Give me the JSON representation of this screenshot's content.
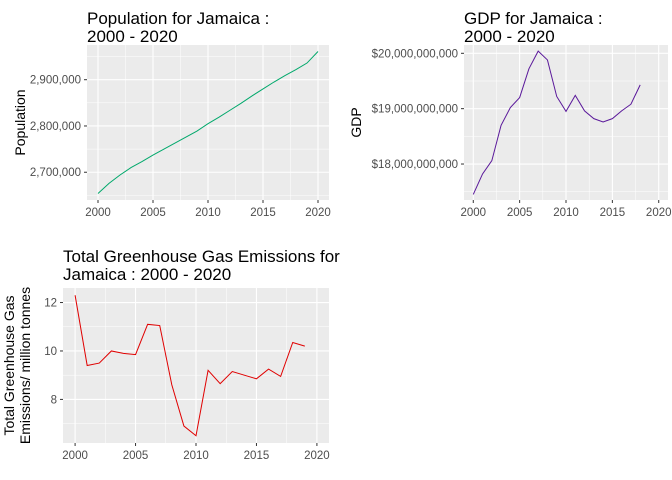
{
  "chart_data": [
    {
      "type": "line",
      "title_lines": [
        "Population for  Jamaica :",
        " 2000 - 2020"
      ],
      "xlabel": "",
      "ylabel_lines": [
        "Population"
      ],
      "color": "#00a86b",
      "xlim": [
        1999,
        2021
      ],
      "ylim": [
        2640000,
        2975000
      ],
      "x_ticks": [
        2000,
        2005,
        2010,
        2015,
        2020
      ],
      "x_tick_labels": [
        "2000",
        "2005",
        "2010",
        "2015",
        "2020"
      ],
      "y_ticks": [
        2700000,
        2800000,
        2900000
      ],
      "y_tick_labels": [
        "2,700,000",
        "2,800,000",
        "2,900,000"
      ],
      "x": [
        2000,
        2001,
        2002,
        2003,
        2004,
        2005,
        2006,
        2007,
        2008,
        2009,
        2010,
        2011,
        2012,
        2013,
        2014,
        2015,
        2016,
        2017,
        2018,
        2019,
        2020
      ],
      "values": [
        2654000,
        2676000,
        2694000,
        2710000,
        2723000,
        2737000,
        2750000,
        2763000,
        2776000,
        2789000,
        2805000,
        2819000,
        2834000,
        2849000,
        2865000,
        2880000,
        2895000,
        2909000,
        2922000,
        2936000,
        2961000
      ]
    },
    {
      "type": "line",
      "title_lines": [
        "GDP for  Jamaica :",
        " 2000 - 2020"
      ],
      "xlabel": "",
      "ylabel_lines": [
        "GDP"
      ],
      "color": "#5a189a",
      "xlim": [
        1999,
        2021
      ],
      "ylim": [
        17350000000,
        20150000000
      ],
      "x_ticks": [
        2000,
        2005,
        2010,
        2015,
        2020
      ],
      "x_tick_labels": [
        "2000",
        "2005",
        "2010",
        "2015",
        "2020"
      ],
      "y_ticks": [
        18000000000,
        19000000000,
        20000000000
      ],
      "y_tick_labels": [
        "$18,000,000,000",
        "$19,000,000,000",
        "$20,000,000,000"
      ],
      "x": [
        2000,
        2001,
        2002,
        2003,
        2004,
        2005,
        2006,
        2007,
        2008,
        2009,
        2010,
        2011,
        2012,
        2013,
        2014,
        2015,
        2016,
        2017,
        2018
      ],
      "values": [
        17450000000,
        17820000000,
        18060000000,
        18700000000,
        19020000000,
        19200000000,
        19720000000,
        20040000000,
        19880000000,
        19220000000,
        18950000000,
        19240000000,
        18960000000,
        18820000000,
        18760000000,
        18820000000,
        18960000000,
        19080000000,
        19430000000
      ]
    },
    {
      "type": "line",
      "title_lines": [
        "Total Greenhouse Gas Emissions for",
        " Jamaica : 2000 - 2020"
      ],
      "xlabel": "",
      "ylabel_lines": [
        "Total Greenhouse Gas",
        "Emissions/ million tonnes"
      ],
      "color": "#e00000",
      "xlim": [
        1999,
        2021
      ],
      "ylim": [
        6.2,
        12.6
      ],
      "x_ticks": [
        2000,
        2005,
        2010,
        2015,
        2020
      ],
      "x_tick_labels": [
        "2000",
        "2005",
        "2010",
        "2015",
        "2020"
      ],
      "y_ticks": [
        8,
        10,
        12
      ],
      "y_tick_labels": [
        "8",
        "10",
        "12"
      ],
      "x": [
        2000,
        2001,
        2002,
        2003,
        2004,
        2005,
        2006,
        2007,
        2008,
        2009,
        2010,
        2011,
        2012,
        2013,
        2014,
        2015,
        2016,
        2017,
        2018,
        2019
      ],
      "values": [
        12.3,
        9.4,
        9.5,
        10.0,
        9.9,
        9.85,
        11.1,
        11.05,
        8.6,
        6.9,
        6.5,
        9.2,
        8.65,
        9.15,
        9.0,
        8.85,
        9.25,
        8.95,
        10.35,
        10.2
      ]
    }
  ]
}
